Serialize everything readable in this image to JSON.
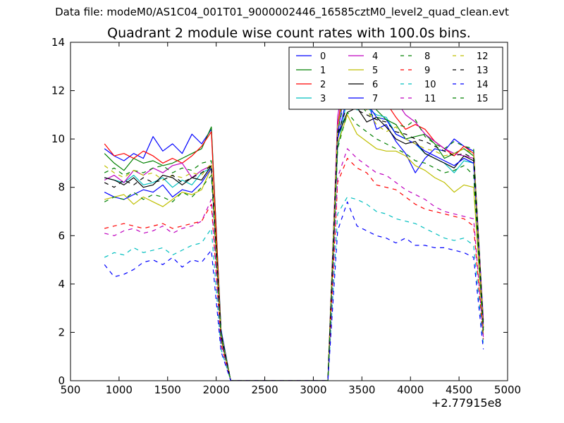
{
  "suptitle": "Data file: modeM0/AS1C04_001T01_9000002446_16585cztM0_level2_quad_clean.evt",
  "chart_data": {
    "type": "line",
    "title": "Quadrant 2 module wise count rates with 100.0s bins.",
    "xlabel": "",
    "ylabel": "",
    "x_offset_label": "+2.77915e8",
    "xlim": [
      500,
      5000
    ],
    "ylim": [
      0,
      14
    ],
    "xticks": [
      "500",
      "1000",
      "1500",
      "2000",
      "2500",
      "3000",
      "3500",
      "4000",
      "4500",
      "5000"
    ],
    "yticks": [
      "0",
      "2",
      "4",
      "6",
      "8",
      "10",
      "12",
      "14"
    ],
    "grid": false,
    "legend_position": "upper-right",
    "x": [
      850,
      950,
      1050,
      1150,
      1250,
      1350,
      1450,
      1550,
      1650,
      1750,
      1850,
      1950,
      2050,
      2150,
      2250,
      2350,
      2450,
      2550,
      2650,
      2750,
      2850,
      2950,
      3050,
      3150,
      3250,
      3350,
      3450,
      3550,
      3650,
      3750,
      3850,
      3950,
      4050,
      4150,
      4250,
      4350,
      4450,
      4550,
      4650,
      4750
    ],
    "series": [
      {
        "name": "0",
        "color": "#0000ff",
        "dash": "solid",
        "values": [
          9.6,
          9.3,
          9.1,
          9.4,
          9.2,
          10.1,
          9.5,
          9.8,
          9.4,
          10.2,
          9.8,
          10.4,
          2.1,
          0,
          0,
          0,
          0,
          0,
          0,
          0,
          0,
          0,
          0,
          0,
          10.2,
          12.7,
          12.2,
          11.7,
          10.4,
          10.6,
          9.9,
          9.4,
          8.6,
          9.2,
          9.6,
          9.5,
          10.0,
          9.7,
          9.5,
          2.5
        ]
      },
      {
        "name": "1",
        "color": "#008000",
        "dash": "solid",
        "values": [
          9.4,
          9.0,
          8.7,
          9.2,
          9.0,
          9.1,
          8.9,
          9.0,
          9.2,
          9.4,
          9.6,
          10.5,
          2.0,
          0,
          0,
          0,
          0,
          0,
          0,
          0,
          0,
          0,
          0,
          0,
          10.6,
          12.8,
          12.5,
          11.9,
          11.2,
          10.8,
          10.6,
          10.0,
          10.1,
          10.2,
          9.8,
          9.2,
          9.4,
          9.6,
          9.3,
          2.2
        ]
      },
      {
        "name": "2",
        "color": "#ff0000",
        "dash": "solid",
        "values": [
          9.8,
          9.3,
          9.4,
          9.2,
          9.5,
          9.3,
          9.0,
          9.2,
          9.0,
          9.3,
          9.7,
          10.3,
          1.9,
          0,
          0,
          0,
          0,
          0,
          0,
          0,
          0,
          0,
          0,
          0,
          10.5,
          13.4,
          12.3,
          12.1,
          11.3,
          11.5,
          10.9,
          10.4,
          10.6,
          10.4,
          9.9,
          9.6,
          9.3,
          9.7,
          9.4,
          2.4
        ]
      },
      {
        "name": "3",
        "color": "#00bfbf",
        "dash": "solid",
        "values": [
          8.4,
          8.3,
          8.2,
          8.5,
          8.1,
          8.2,
          8.4,
          8.0,
          8.3,
          8.1,
          8.6,
          8.8,
          1.8,
          0,
          0,
          0,
          0,
          0,
          0,
          0,
          0,
          0,
          0,
          0,
          9.6,
          11.7,
          11.2,
          11.3,
          11.0,
          10.9,
          10.2,
          10.0,
          9.8,
          9.4,
          9.2,
          9.0,
          8.6,
          9.1,
          9.0,
          2.1
        ]
      },
      {
        "name": "4",
        "color": "#bf00bf",
        "dash": "solid",
        "values": [
          8.3,
          8.5,
          8.2,
          8.7,
          8.5,
          8.8,
          8.6,
          8.9,
          9.0,
          8.4,
          8.7,
          8.9,
          1.9,
          0,
          0,
          0,
          0,
          0,
          0,
          0,
          0,
          0,
          0,
          0,
          10.9,
          13.6,
          12.6,
          12.5,
          12.0,
          11.8,
          11.6,
          11.0,
          10.7,
          10.2,
          9.9,
          9.6,
          9.4,
          9.3,
          9.2,
          2.3
        ]
      },
      {
        "name": "5",
        "color": "#bfbf00",
        "dash": "solid",
        "values": [
          7.5,
          7.6,
          7.7,
          7.3,
          7.6,
          7.4,
          7.2,
          7.5,
          7.8,
          7.7,
          7.9,
          8.8,
          1.7,
          0,
          0,
          0,
          0,
          0,
          0,
          0,
          0,
          0,
          0,
          0,
          9.8,
          11.0,
          10.2,
          9.9,
          9.6,
          9.5,
          9.5,
          9.3,
          8.9,
          8.7,
          8.4,
          8.2,
          7.8,
          8.1,
          8.0,
          1.9
        ]
      },
      {
        "name": "6",
        "color": "#000000",
        "dash": "solid",
        "values": [
          8.4,
          8.3,
          8.1,
          8.4,
          8.0,
          8.1,
          8.5,
          8.4,
          8.1,
          8.4,
          8.3,
          8.9,
          1.8,
          0,
          0,
          0,
          0,
          0,
          0,
          0,
          0,
          0,
          0,
          0,
          10.1,
          11.1,
          11.3,
          10.7,
          10.9,
          10.5,
          10.0,
          9.8,
          9.9,
          9.4,
          9.2,
          9.0,
          8.8,
          9.3,
          9.1,
          2.1
        ]
      },
      {
        "name": "7",
        "color": "#0000ff",
        "dash": "solid",
        "values": [
          7.8,
          7.6,
          7.5,
          7.7,
          7.9,
          7.8,
          8.1,
          7.6,
          7.9,
          7.8,
          8.2,
          8.8,
          1.8,
          0,
          0,
          0,
          0,
          0,
          0,
          0,
          0,
          0,
          0,
          0,
          10.0,
          11.8,
          11.4,
          11.5,
          10.9,
          10.8,
          10.2,
          10.0,
          9.8,
          9.5,
          9.3,
          9.1,
          8.9,
          9.2,
          9.0,
          2.2
        ]
      },
      {
        "name": "8",
        "color": "#008000",
        "dash": "dashed",
        "values": [
          8.6,
          8.8,
          8.5,
          8.7,
          8.6,
          8.8,
          8.9,
          8.6,
          8.8,
          8.7,
          9.0,
          9.1,
          1.9,
          0,
          0,
          0,
          0,
          0,
          0,
          0,
          0,
          0,
          0,
          0,
          10.3,
          12.2,
          11.6,
          11.1,
          10.9,
          10.8,
          10.6,
          10.5,
          10.8,
          10.1,
          9.8,
          9.6,
          9.9,
          9.7,
          9.6,
          2.3
        ]
      },
      {
        "name": "9",
        "color": "#ff0000",
        "dash": "dashed",
        "values": [
          6.3,
          6.4,
          6.5,
          6.4,
          6.3,
          6.4,
          6.5,
          6.3,
          6.4,
          6.5,
          6.6,
          7.3,
          1.5,
          0,
          0,
          0,
          0,
          0,
          0,
          0,
          0,
          0,
          0,
          0,
          8.2,
          9.2,
          8.8,
          8.6,
          8.1,
          8.0,
          7.9,
          7.6,
          7.3,
          7.1,
          7.0,
          6.9,
          6.8,
          6.7,
          6.4,
          1.7
        ]
      },
      {
        "name": "10",
        "color": "#00bfbf",
        "dash": "dashed",
        "values": [
          5.1,
          5.3,
          5.2,
          5.5,
          5.3,
          5.4,
          5.5,
          5.2,
          5.4,
          5.6,
          5.7,
          6.3,
          1.3,
          0,
          0,
          0,
          0,
          0,
          0,
          0,
          0,
          0,
          0,
          0,
          6.9,
          7.6,
          7.5,
          7.3,
          7.0,
          6.9,
          6.7,
          6.6,
          6.5,
          6.3,
          6.1,
          5.9,
          5.8,
          5.9,
          5.6,
          1.5
        ]
      },
      {
        "name": "11",
        "color": "#bf00bf",
        "dash": "dashed",
        "values": [
          6.1,
          6.0,
          6.2,
          6.3,
          6.1,
          6.2,
          6.4,
          6.1,
          6.3,
          6.4,
          6.6,
          7.5,
          1.6,
          0,
          0,
          0,
          0,
          0,
          0,
          0,
          0,
          0,
          0,
          0,
          8.4,
          9.6,
          9.2,
          8.9,
          8.6,
          8.5,
          8.2,
          7.9,
          7.7,
          7.5,
          7.2,
          7.0,
          6.9,
          6.8,
          6.7,
          1.8
        ]
      },
      {
        "name": "12",
        "color": "#bfbf00",
        "dash": "dashed",
        "values": [
          8.9,
          8.6,
          8.4,
          8.7,
          8.5,
          8.6,
          8.3,
          8.5,
          8.4,
          8.6,
          8.5,
          9.0,
          1.9,
          0,
          0,
          0,
          0,
          0,
          0,
          0,
          0,
          0,
          0,
          0,
          10.5,
          12.5,
          11.6,
          11.2,
          10.6,
          10.3,
          10.5,
          10.0,
          9.8,
          9.6,
          9.5,
          9.3,
          9.4,
          9.6,
          9.4,
          2.2
        ]
      },
      {
        "name": "13",
        "color": "#000000",
        "dash": "dashed",
        "values": [
          8.2,
          8.0,
          8.3,
          8.1,
          8.4,
          8.2,
          8.3,
          8.5,
          8.2,
          8.4,
          8.6,
          8.9,
          1.9,
          0,
          0,
          0,
          0,
          0,
          0,
          0,
          0,
          0,
          0,
          0,
          10.2,
          11.4,
          11.2,
          11.0,
          10.8,
          10.7,
          10.3,
          10.2,
          10.0,
          9.9,
          9.7,
          9.5,
          9.3,
          9.4,
          9.2,
          2.2
        ]
      },
      {
        "name": "14",
        "color": "#0000ff",
        "dash": "dashed",
        "values": [
          4.8,
          4.3,
          4.4,
          4.6,
          4.9,
          5.0,
          4.8,
          5.1,
          4.7,
          5.0,
          4.9,
          5.4,
          1.2,
          0,
          0,
          0,
          0,
          0,
          0,
          0,
          0,
          0,
          0,
          0,
          6.2,
          7.4,
          6.4,
          6.2,
          6.0,
          5.9,
          5.7,
          5.9,
          5.6,
          5.6,
          5.5,
          5.5,
          5.4,
          5.3,
          5.1,
          1.3
        ]
      },
      {
        "name": "15",
        "color": "#008000",
        "dash": "dashed",
        "values": [
          7.4,
          7.6,
          7.5,
          7.8,
          7.5,
          7.7,
          7.6,
          7.4,
          7.8,
          7.6,
          8.0,
          8.5,
          1.8,
          0,
          0,
          0,
          0,
          0,
          0,
          0,
          0,
          0,
          0,
          0,
          9.6,
          11.1,
          10.6,
          10.3,
          10.0,
          9.8,
          9.6,
          9.4,
          9.1,
          9.0,
          8.8,
          8.6,
          8.7,
          8.9,
          8.5,
          2.0
        ]
      }
    ]
  }
}
